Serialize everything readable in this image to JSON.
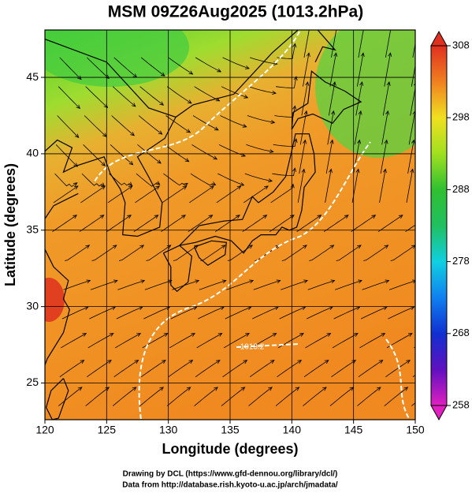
{
  "chart_data": {
    "type": "map",
    "title": "MSM 09Z26Aug2025 (1013.2hPa)",
    "x_label": "Longitude (degrees)",
    "y_label": "Latitude  (degrees)",
    "xlim": [
      120,
      150
    ],
    "ylim": [
      22.6,
      48.1
    ],
    "xticks": [
      120,
      125,
      130,
      135,
      140,
      145,
      150
    ],
    "yticks": [
      25,
      30,
      35,
      40,
      45
    ],
    "grid": true,
    "colorbar": {
      "lim": [
        258,
        308
      ],
      "ticks": [
        258,
        268,
        278,
        288,
        298,
        308
      ]
    },
    "contour_label": "1013.2",
    "footer": [
      "Drawing by DCL (https://www.gfd-dennou.org/library/dcl/)",
      "Data from http://database.rish.kyoto-u.ac.jp/arch/jmadata/"
    ]
  }
}
